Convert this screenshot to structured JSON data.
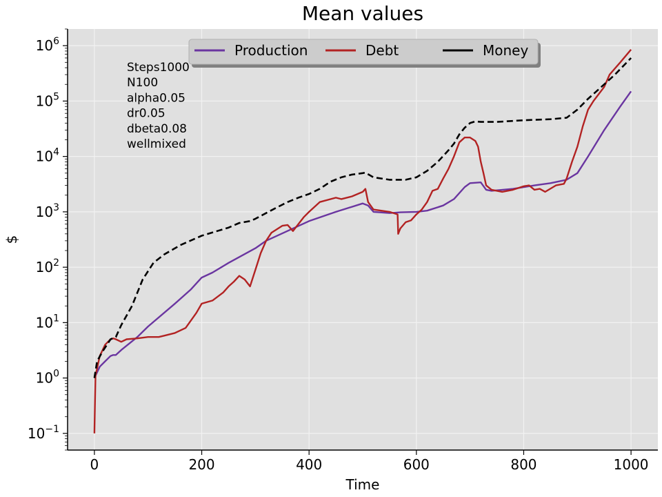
{
  "chart_data": {
    "type": "line",
    "title": "Mean values",
    "xlabel": "Time",
    "ylabel": "$",
    "yscale": "log",
    "xlim": [
      -50,
      1050
    ],
    "ylim": [
      0.05,
      2000000
    ],
    "xticks": [
      0,
      200,
      400,
      600,
      800,
      1000
    ],
    "xtick_labels": [
      "0",
      "200",
      "400",
      "600",
      "800",
      "1000"
    ],
    "yticks": [
      0.1,
      1,
      10,
      100,
      1000,
      10000,
      100000,
      1000000
    ],
    "ytick_labels": [
      {
        "base": "10",
        "exp": "−1"
      },
      {
        "base": "10",
        "exp": "0"
      },
      {
        "base": "10",
        "exp": "1"
      },
      {
        "base": "10",
        "exp": "2"
      },
      {
        "base": "10",
        "exp": "3"
      },
      {
        "base": "10",
        "exp": "4"
      },
      {
        "base": "10",
        "exp": "5"
      },
      {
        "base": "10",
        "exp": "6"
      }
    ],
    "grid": true,
    "legend_placement": "upper center",
    "annotation": [
      "Steps1000",
      "N100",
      "alpha0.05",
      "dr0.05",
      "dbeta0.08",
      "wellmixed"
    ],
    "colors": {
      "background": "#e0e0e0",
      "grid": "#f2f2f2"
    },
    "series": [
      {
        "name": "Production",
        "color": "#6a35a0",
        "dash": "solid",
        "points": [
          [
            0,
            1.0
          ],
          [
            10,
            1.6
          ],
          [
            20,
            2.0
          ],
          [
            30,
            2.5
          ],
          [
            35,
            2.6
          ],
          [
            40,
            2.6
          ],
          [
            50,
            3.2
          ],
          [
            80,
            5.5
          ],
          [
            100,
            8.5
          ],
          [
            150,
            22
          ],
          [
            180,
            40
          ],
          [
            200,
            65
          ],
          [
            220,
            80
          ],
          [
            250,
            120
          ],
          [
            300,
            220
          ],
          [
            320,
            300
          ],
          [
            400,
            680
          ],
          [
            450,
            1000
          ],
          [
            500,
            1420
          ],
          [
            510,
            1300
          ],
          [
            520,
            1000
          ],
          [
            550,
            950
          ],
          [
            570,
            980
          ],
          [
            600,
            1000
          ],
          [
            620,
            1050
          ],
          [
            650,
            1300
          ],
          [
            670,
            1700
          ],
          [
            690,
            2800
          ],
          [
            700,
            3300
          ],
          [
            720,
            3400
          ],
          [
            730,
            2500
          ],
          [
            740,
            2400
          ],
          [
            780,
            2600
          ],
          [
            820,
            3000
          ],
          [
            850,
            3300
          ],
          [
            880,
            3800
          ],
          [
            900,
            5000
          ],
          [
            920,
            10000
          ],
          [
            950,
            30000
          ],
          [
            980,
            80000
          ],
          [
            1000,
            150000
          ]
        ]
      },
      {
        "name": "Debt",
        "color": "#b22222",
        "dash": "solid",
        "points": [
          [
            0,
            0.1
          ],
          [
            2,
            1.1
          ],
          [
            10,
            2.5
          ],
          [
            20,
            4.0
          ],
          [
            30,
            5.0
          ],
          [
            35,
            5.2
          ],
          [
            40,
            5.0
          ],
          [
            50,
            4.5
          ],
          [
            60,
            5.0
          ],
          [
            80,
            5.2
          ],
          [
            100,
            5.5
          ],
          [
            120,
            5.5
          ],
          [
            130,
            5.8
          ],
          [
            150,
            6.5
          ],
          [
            170,
            8
          ],
          [
            190,
            15
          ],
          [
            200,
            22
          ],
          [
            220,
            25
          ],
          [
            240,
            35
          ],
          [
            250,
            45
          ],
          [
            260,
            55
          ],
          [
            270,
            70
          ],
          [
            280,
            60
          ],
          [
            290,
            45
          ],
          [
            300,
            90
          ],
          [
            310,
            180
          ],
          [
            320,
            300
          ],
          [
            330,
            420
          ],
          [
            350,
            560
          ],
          [
            360,
            580
          ],
          [
            370,
            450
          ],
          [
            380,
            600
          ],
          [
            390,
            800
          ],
          [
            400,
            1000
          ],
          [
            420,
            1500
          ],
          [
            450,
            1800
          ],
          [
            460,
            1700
          ],
          [
            480,
            1900
          ],
          [
            500,
            2300
          ],
          [
            505,
            2600
          ],
          [
            510,
            1500
          ],
          [
            520,
            1100
          ],
          [
            550,
            1000
          ],
          [
            565,
            900
          ],
          [
            566,
            400
          ],
          [
            570,
            500
          ],
          [
            580,
            650
          ],
          [
            590,
            700
          ],
          [
            600,
            900
          ],
          [
            610,
            1100
          ],
          [
            620,
            1500
          ],
          [
            630,
            2400
          ],
          [
            640,
            2600
          ],
          [
            650,
            4000
          ],
          [
            660,
            6000
          ],
          [
            670,
            10000
          ],
          [
            680,
            18000
          ],
          [
            690,
            22000
          ],
          [
            700,
            22000
          ],
          [
            710,
            19000
          ],
          [
            715,
            15000
          ],
          [
            720,
            8000
          ],
          [
            725,
            5000
          ],
          [
            730,
            3000
          ],
          [
            740,
            2500
          ],
          [
            760,
            2300
          ],
          [
            780,
            2500
          ],
          [
            800,
            2900
          ],
          [
            810,
            3000
          ],
          [
            820,
            2500
          ],
          [
            830,
            2600
          ],
          [
            840,
            2300
          ],
          [
            860,
            3000
          ],
          [
            875,
            3200
          ],
          [
            880,
            4000
          ],
          [
            890,
            8000
          ],
          [
            900,
            15000
          ],
          [
            910,
            35000
          ],
          [
            920,
            70000
          ],
          [
            930,
            100000
          ],
          [
            950,
            180000
          ],
          [
            960,
            300000
          ],
          [
            980,
            500000
          ],
          [
            1000,
            850000
          ]
        ]
      },
      {
        "name": "Money",
        "color": "#000000",
        "dash": "dashed",
        "points": [
          [
            0,
            1.0
          ],
          [
            5,
            2.0
          ],
          [
            15,
            3.0
          ],
          [
            30,
            5.0
          ],
          [
            40,
            5.5
          ],
          [
            50,
            9
          ],
          [
            70,
            20
          ],
          [
            90,
            60
          ],
          [
            110,
            120
          ],
          [
            130,
            170
          ],
          [
            160,
            250
          ],
          [
            200,
            370
          ],
          [
            250,
            520
          ],
          [
            270,
            630
          ],
          [
            290,
            680
          ],
          [
            300,
            750
          ],
          [
            320,
            950
          ],
          [
            340,
            1200
          ],
          [
            360,
            1500
          ],
          [
            380,
            1800
          ],
          [
            400,
            2100
          ],
          [
            420,
            2600
          ],
          [
            440,
            3500
          ],
          [
            460,
            4200
          ],
          [
            480,
            4700
          ],
          [
            500,
            5000
          ],
          [
            505,
            5100
          ],
          [
            520,
            4200
          ],
          [
            550,
            3800
          ],
          [
            580,
            3800
          ],
          [
            600,
            4200
          ],
          [
            620,
            5500
          ],
          [
            640,
            8000
          ],
          [
            660,
            13000
          ],
          [
            670,
            17000
          ],
          [
            680,
            25000
          ],
          [
            690,
            33000
          ],
          [
            700,
            40000
          ],
          [
            710,
            43000
          ],
          [
            720,
            42000
          ],
          [
            750,
            42000
          ],
          [
            800,
            45000
          ],
          [
            850,
            47000
          ],
          [
            880,
            50000
          ],
          [
            900,
            70000
          ],
          [
            920,
            110000
          ],
          [
            950,
            200000
          ],
          [
            970,
            300000
          ],
          [
            1000,
            600000
          ]
        ]
      }
    ]
  }
}
